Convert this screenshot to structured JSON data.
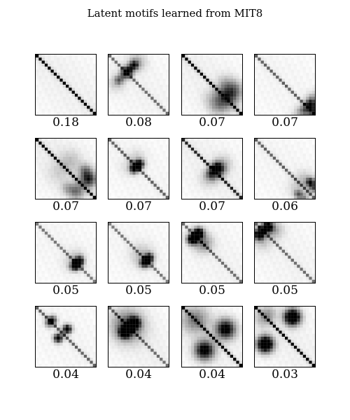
{
  "chart_data": {
    "type": "heatmap",
    "title": "Latent motifs learned from MIT8",
    "grid": {
      "rows": 4,
      "cols": 4,
      "cells": 20
    },
    "motifs": [
      {
        "weight": "0.18",
        "diag": 1.0,
        "band": 0.05,
        "blobs": []
      },
      {
        "weight": "0.08",
        "diag": 0.55,
        "band": 0.04,
        "blobs": [
          [
            5,
            6,
            0.9,
            1.2
          ],
          [
            3,
            8,
            0.8,
            1.0
          ],
          [
            2,
            9,
            0.3,
            2.0
          ]
        ]
      },
      {
        "weight": "0.07",
        "diag": 1.0,
        "band": 0.05,
        "blobs": [
          [
            13,
            15,
            0.55,
            2.5
          ],
          [
            11,
            17,
            0.3,
            2.0
          ],
          [
            9,
            14,
            0.2,
            2.0
          ]
        ]
      },
      {
        "weight": "0.07",
        "diag": 0.6,
        "band": 0.03,
        "blobs": [
          [
            16,
            18,
            0.9,
            1.2
          ],
          [
            18,
            19,
            0.5,
            1.0
          ],
          [
            14,
            19,
            0.3,
            1.5
          ]
        ]
      },
      {
        "weight": "0.07",
        "diag": 1.0,
        "band": 0.06,
        "blobs": [
          [
            13,
            17,
            0.85,
            1.8
          ],
          [
            10,
            16,
            0.4,
            1.5
          ],
          [
            7,
            11,
            0.2,
            2.5
          ]
        ]
      },
      {
        "weight": "0.07",
        "diag": 0.6,
        "band": 0.03,
        "blobs": [
          [
            8,
            10,
            0.9,
            1.0
          ],
          [
            9,
            8,
            0.7,
            1.0
          ],
          [
            6,
            9,
            0.15,
            2.0
          ]
        ]
      },
      {
        "weight": "0.07",
        "diag": 0.85,
        "band": 0.05,
        "blobs": [
          [
            9,
            11,
            0.8,
            1.2
          ],
          [
            10,
            12,
            0.5,
            1.5
          ],
          [
            8,
            13,
            0.25,
            2.0
          ]
        ]
      },
      {
        "weight": "0.06",
        "diag": 0.6,
        "band": 0.03,
        "blobs": [
          [
            14,
            18,
            0.95,
            1.0
          ],
          [
            16,
            19,
            0.6,
            1.0
          ],
          [
            13,
            16,
            0.2,
            2.0
          ]
        ]
      },
      {
        "weight": "0.05",
        "diag": 0.5,
        "band": 0.03,
        "blobs": [
          [
            12,
            14,
            0.85,
            1.0
          ],
          [
            14,
            13,
            0.8,
            1.0
          ],
          [
            11,
            13,
            0.15,
            2.0
          ]
        ]
      },
      {
        "weight": "0.05",
        "diag": 0.5,
        "band": 0.03,
        "blobs": [
          [
            11,
            13,
            0.85,
            1.0
          ],
          [
            13,
            12,
            0.7,
            1.0
          ],
          [
            10,
            11,
            0.15,
            2.5
          ]
        ]
      },
      {
        "weight": "0.05",
        "diag": 0.55,
        "band": 0.04,
        "blobs": [
          [
            3,
            5,
            0.9,
            1.2
          ],
          [
            5,
            3,
            0.85,
            1.2
          ],
          [
            6,
            7,
            0.3,
            2.0
          ]
        ]
      },
      {
        "weight": "0.05",
        "diag": 0.55,
        "band": 0.04,
        "blobs": [
          [
            1,
            4,
            0.9,
            1.2
          ],
          [
            3,
            1,
            0.8,
            1.2
          ],
          [
            2,
            6,
            0.3,
            2.0
          ]
        ]
      },
      {
        "weight": "0.04",
        "diag": 0.6,
        "band": 0.03,
        "blobs": [
          [
            4,
            5,
            0.85,
            1.0
          ],
          [
            7,
            10,
            0.85,
            1.0
          ],
          [
            10,
            7,
            0.7,
            1.0
          ]
        ]
      },
      {
        "weight": "0.04",
        "diag": 0.55,
        "band": 0.05,
        "blobs": [
          [
            5,
            8,
            0.9,
            1.3
          ],
          [
            8,
            5,
            0.85,
            1.3
          ],
          [
            6,
            6,
            0.4,
            3.5
          ]
        ]
      },
      {
        "weight": "0.04",
        "diag": 1.0,
        "band": 0.05,
        "blobs": [
          [
            7,
            14,
            0.7,
            2.2
          ],
          [
            14,
            7,
            0.7,
            2.2
          ],
          [
            4,
            4,
            0.3,
            3.0
          ]
        ]
      },
      {
        "weight": "0.03",
        "diag": 1.0,
        "band": 0.05,
        "blobs": [
          [
            3,
            12,
            1.0,
            1.8
          ],
          [
            12,
            3,
            1.0,
            1.8
          ],
          [
            2,
            4,
            0.3,
            2.0
          ]
        ]
      }
    ]
  }
}
